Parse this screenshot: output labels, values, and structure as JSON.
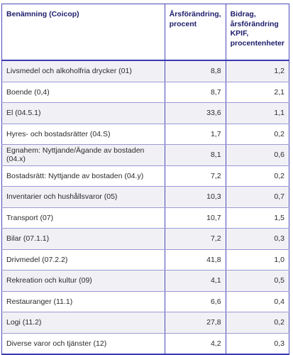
{
  "table": {
    "header": [
      "Benämning (Coicop)",
      "Årsförändring, procent",
      "Bidrag, årsförändring KPIF, procentenheter"
    ],
    "rows": [
      [
        "Livsmedel och alkoholfria drycker (01)",
        "8,8",
        "1,2"
      ],
      [
        "Boende (0,4)",
        "8,7",
        "2,1"
      ],
      [
        "El (04.5.1)",
        "33,6",
        "1,1"
      ],
      [
        "Hyres- och bostadsrätter (04.S)",
        "1,7",
        "0,2"
      ],
      [
        "Egnahem: Nyttjande/Ägande av bostaden (04.x)",
        "8,1",
        "0,6"
      ],
      [
        "Bostadsrätt: Nyttjande av bostaden (04.y)",
        "7,2",
        "0,2"
      ],
      [
        "Inventarier och hushållsvaror (05)",
        "10,3",
        "0,7"
      ],
      [
        "Transport (07)",
        "10,7",
        "1,5"
      ],
      [
        "Bilar (07.1.1)",
        "7,2",
        "0,3"
      ],
      [
        "Drivmedel (07.2.2)",
        "41,8",
        "1,0"
      ],
      [
        "Rekreation och kultur (09)",
        "4,1",
        "0,5"
      ],
      [
        "Restauranger (11.1)",
        "6,6",
        "0,4"
      ],
      [
        "Logi (11.2)",
        "27,8",
        "0,2"
      ],
      [
        "Diverse varor och tjänster (12)",
        "4,2",
        "0,3"
      ]
    ]
  }
}
